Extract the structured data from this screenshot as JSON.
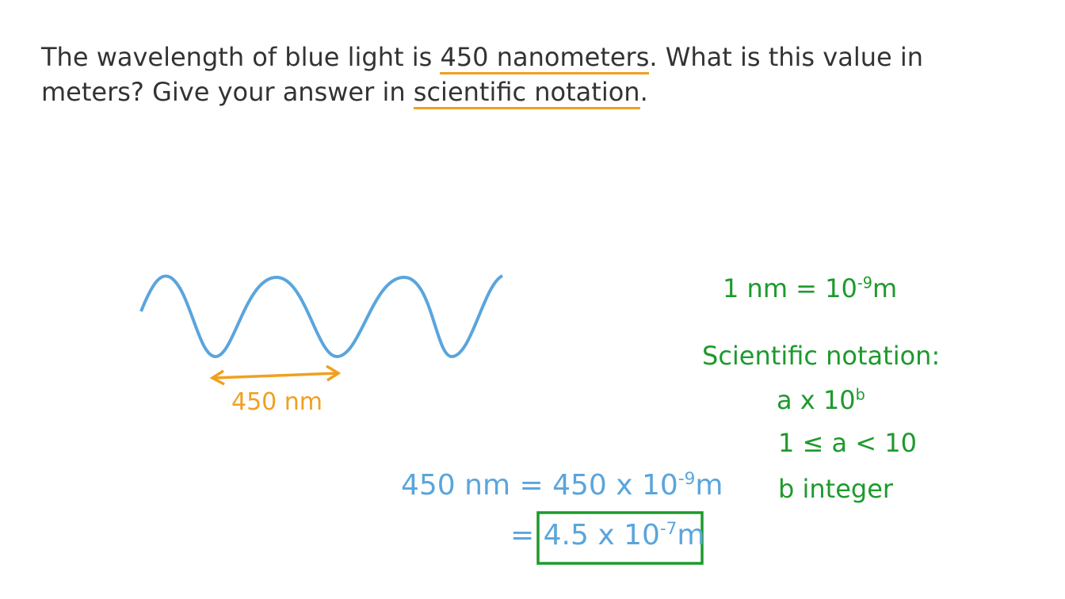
{
  "question": {
    "line1_start": "The wavelength of blue light is",
    "highlight1": "450 nanometers",
    "line1_end": ". What is this value in",
    "line2_start": "meters? Give your answer in",
    "highlight2": "scientific notation",
    "line2_end": "."
  },
  "diagram": {
    "wavelength_label": "450 nm"
  },
  "facts": {
    "conversion": {
      "base": "1 nm = 10",
      "exponent": "-9",
      "unit": "m"
    },
    "notation_title": "Scientific notation:",
    "form": {
      "base": "a x 10",
      "exponent": "b"
    },
    "condition": "1 ≤ a < 10",
    "exponent_rule": "b integer"
  },
  "work": {
    "line1": {
      "lhs": "450 nm",
      "equals": "=",
      "base": "450 x 10",
      "exponent": "-9",
      "unit": "m"
    },
    "line2": {
      "equals": "=",
      "base": "4.5 x 10",
      "exponent": "-7",
      "unit": "m"
    }
  }
}
